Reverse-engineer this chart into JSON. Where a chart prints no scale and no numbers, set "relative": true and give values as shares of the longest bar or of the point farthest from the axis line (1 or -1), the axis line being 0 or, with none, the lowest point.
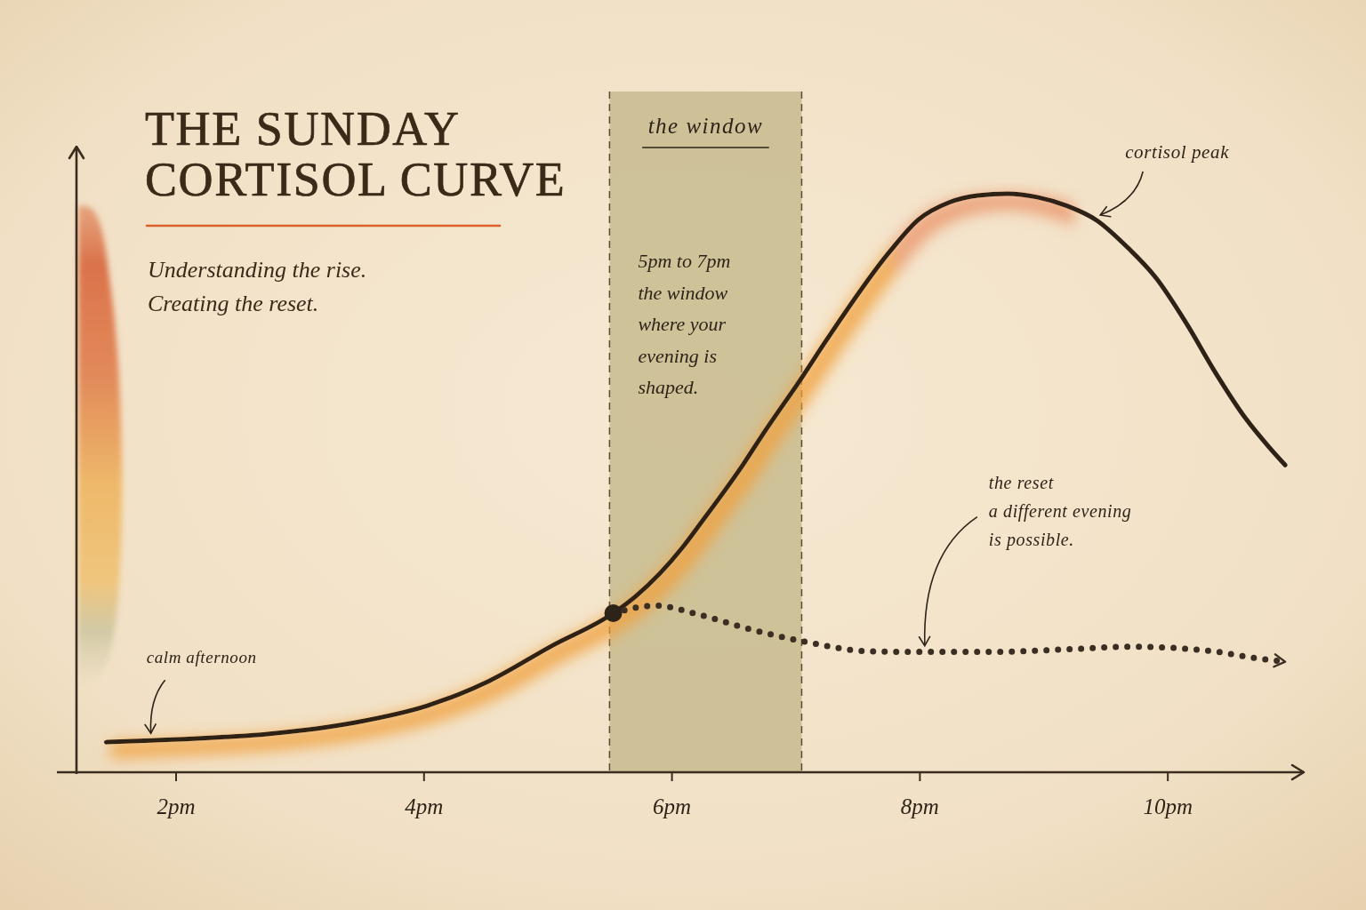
{
  "chart_data": {
    "type": "line",
    "title": "THE SUNDAY\nCORTISOL CURVE",
    "subtitle": "Understanding the rise.\nCreating the reset.",
    "relative": true,
    "xlim": [
      1.2,
      11.1
    ],
    "xticks": [
      {
        "value": 2,
        "label": "2pm"
      },
      {
        "value": 4,
        "label": "4pm"
      },
      {
        "value": 6,
        "label": "6pm"
      },
      {
        "value": 8,
        "label": "8pm"
      },
      {
        "value": 10,
        "label": "10pm"
      }
    ],
    "series": [
      {
        "color": "#2e2318",
        "line_style": "solid",
        "x": [
          1.44,
          1.8,
          2.02,
          2.74,
          3.45,
          4.03,
          4.53,
          5.03,
          5.53,
          5.71,
          6.09,
          6.23,
          6.59,
          6.73,
          7.06,
          7.25,
          7.76,
          7.99,
          8.24,
          8.47,
          8.71,
          8.95,
          9.19,
          9.43,
          9.67,
          9.91,
          10.15,
          10.39,
          10.63,
          10.82,
          10.95
        ],
        "values": [
          0.052,
          0.055,
          0.057,
          0.066,
          0.086,
          0.115,
          0.158,
          0.218,
          0.275,
          0.304,
          0.389,
          0.429,
          0.536,
          0.582,
          0.685,
          0.747,
          0.9,
          0.955,
          0.985,
          0.997,
          1.0,
          0.994,
          0.979,
          0.954,
          0.909,
          0.854,
          0.777,
          0.69,
          0.612,
          0.562,
          0.531
        ]
      },
      {
        "color": "#3b2e22",
        "line_style": "dotted",
        "x": [
          5.53,
          5.87,
          6.23,
          6.57,
          7.09,
          7.6,
          8.05,
          8.61,
          9.14,
          9.72,
          10.37,
          10.72,
          10.95
        ],
        "values": [
          0.275,
          0.288,
          0.272,
          0.251,
          0.225,
          0.209,
          0.208,
          0.208,
          0.212,
          0.217,
          0.209,
          0.197,
          0.191
        ]
      },
      {
        "type": "scatter",
        "color": "#2e2318",
        "marker": "circle",
        "x": [
          5.53
        ],
        "values": [
          0.275
        ]
      }
    ],
    "bands": [
      {
        "axis": "x",
        "from": 5.5,
        "to": 7.05,
        "label": "the window",
        "color": "#c6b98c"
      }
    ],
    "ref_lines": [
      {
        "axis": "x",
        "value": 5.5,
        "color": "#5a4a38",
        "line_style": "dashed"
      },
      {
        "axis": "x",
        "value": 7.05,
        "color": "#5a4a38",
        "line_style": "dashed"
      }
    ],
    "annotations": [
      {
        "text": "calm afternoon",
        "x": 1.8,
        "y": 0.055
      },
      {
        "text": "cortisol peak",
        "x": 9.43,
        "y": 0.954
      },
      {
        "text": "the reset\na different evening\nis possible.",
        "x": 8.05,
        "y": 0.208
      },
      "5pm to 7pm\nthe window\nwhere your\nevening is\nshaped."
    ]
  }
}
